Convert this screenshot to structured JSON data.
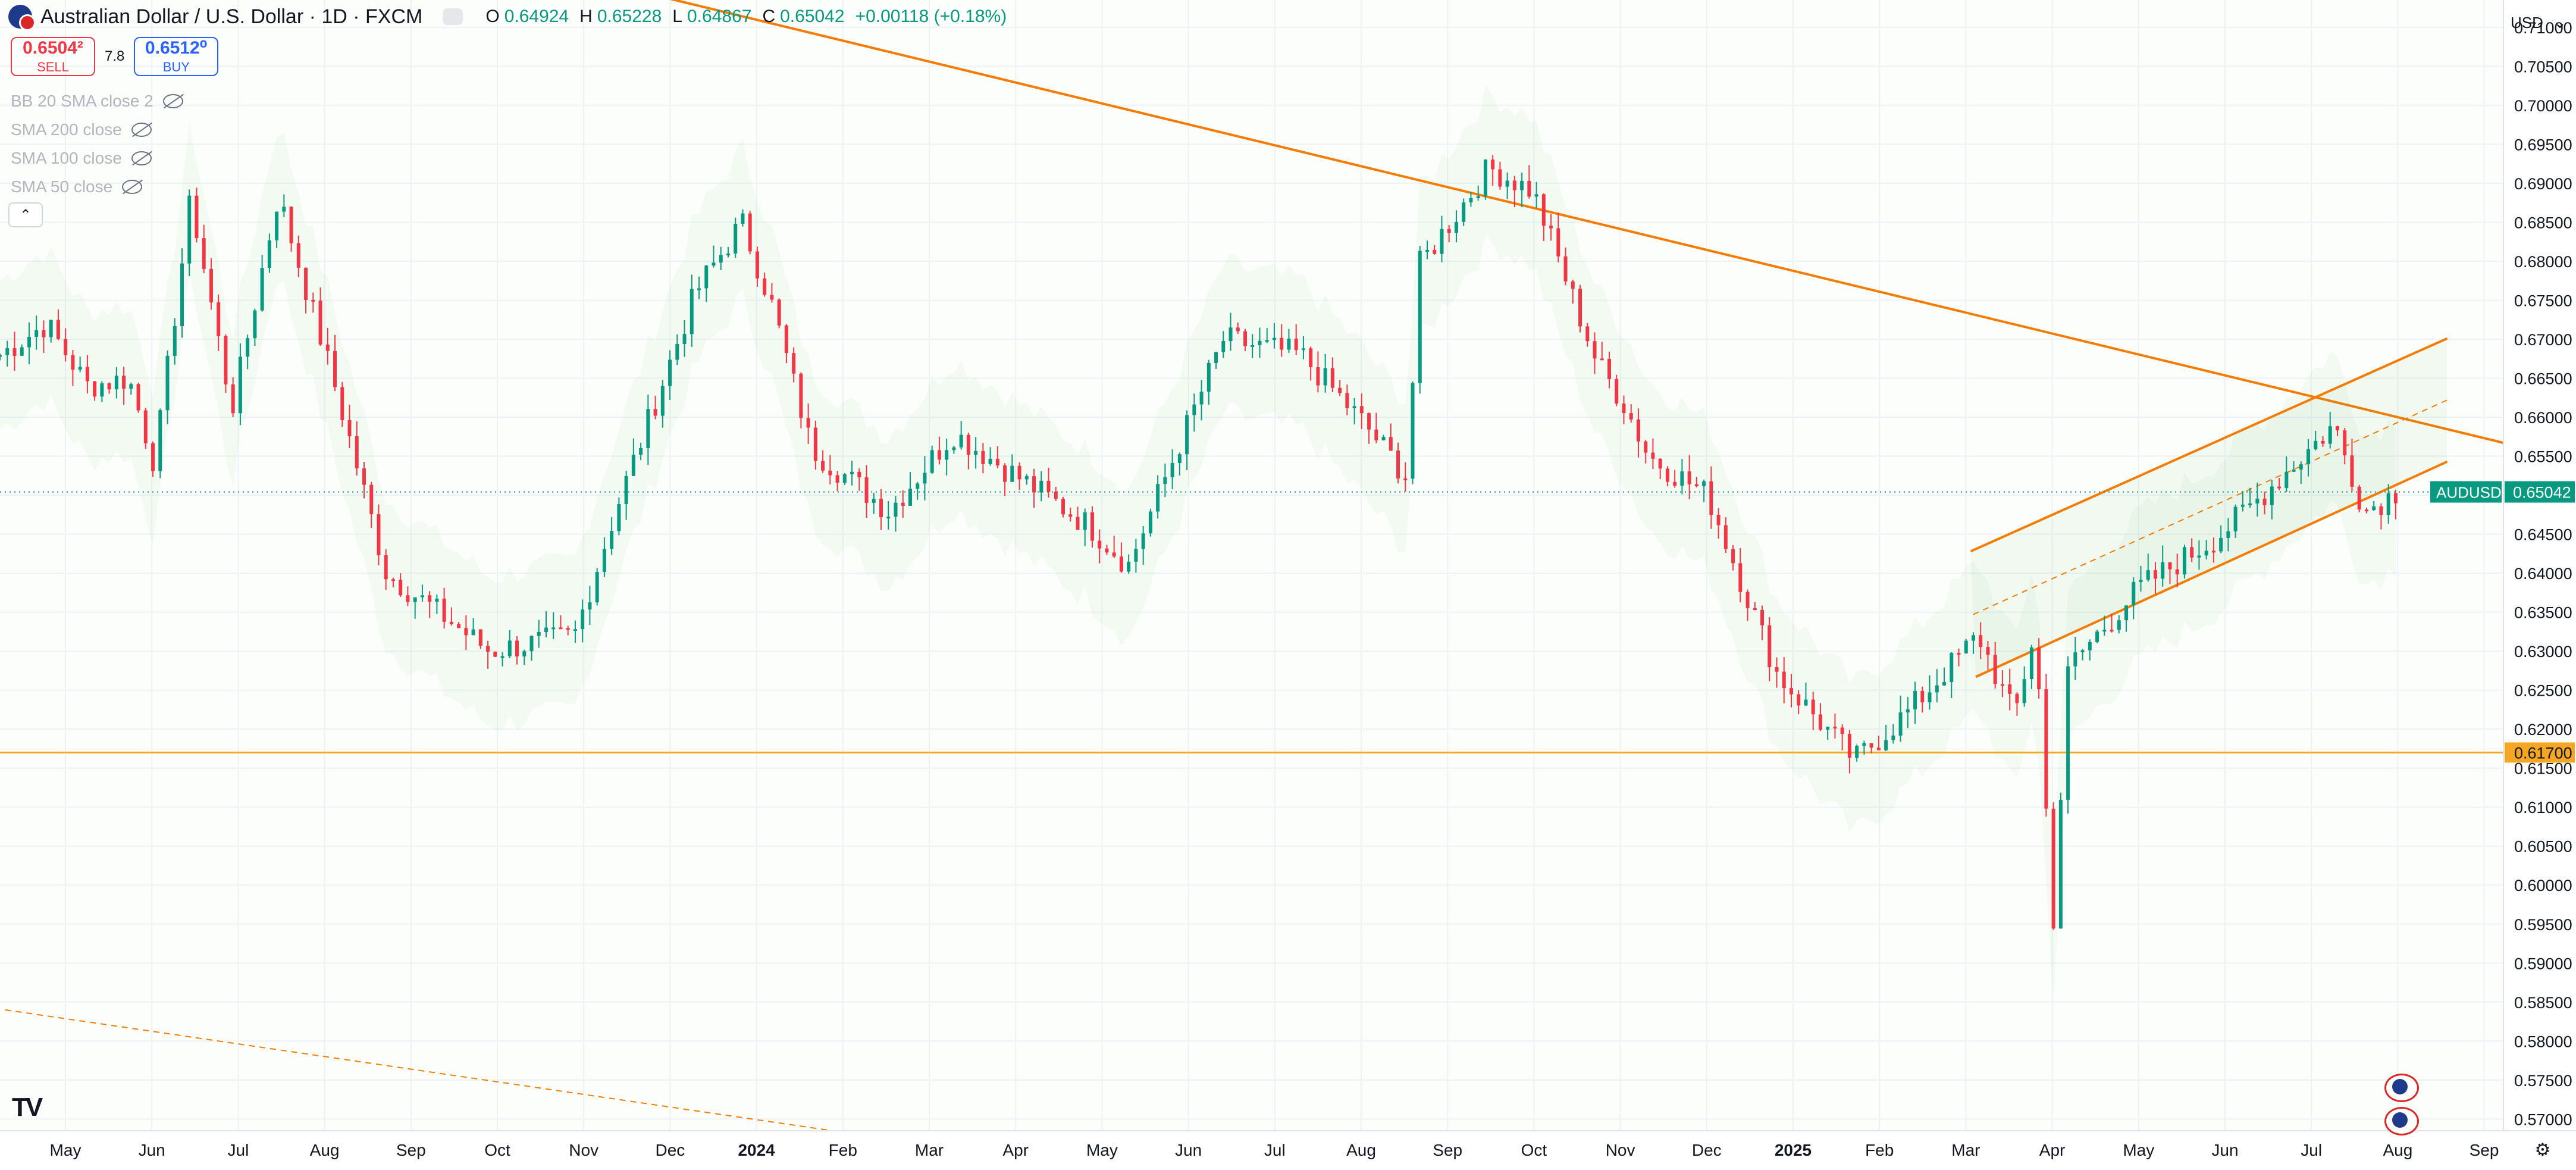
{
  "header": {
    "title": "Australian Dollar / U.S. Dollar · 1D · FXCM",
    "ohlc": [
      {
        "label": "O",
        "value": "0.64924"
      },
      {
        "label": "H",
        "value": "0.65228"
      },
      {
        "label": "L",
        "value": "0.64867"
      },
      {
        "label": "C",
        "value": "0.65042"
      }
    ],
    "change": "+0.00118 (+0.18%)"
  },
  "trade": {
    "sell_price": "0.6504²",
    "sell_label": "SELL",
    "spread": "7.8",
    "buy_price": "0.6512⁰",
    "buy_label": "BUY"
  },
  "indicators": [
    "BB 20 SMA close 2",
    "SMA 200 close",
    "SMA 100 close",
    "SMA 50 close"
  ],
  "currency": "USD",
  "icons": {
    "logo": "tradingview-logo-icon",
    "settings": "gear-icon",
    "collapse": "chevron-up-icon",
    "visibility": "eye-off-icon",
    "currency_menu": "chevron-down-icon",
    "symbol": "aud-usd-flag-icon"
  },
  "colors": {
    "up": "#089981",
    "down": "#f23645",
    "trendline": "#f57c00",
    "support": "#f5a623",
    "grid": "#f0f3fa"
  },
  "chart_data": {
    "type": "candlestick",
    "symbol": "AUDUSD",
    "timeframe": "1D",
    "ylim": [
      0.5685,
      0.7135
    ],
    "y_ticks": [
      "0.57000",
      "0.57500",
      "0.58000",
      "0.58500",
      "0.59000",
      "0.59500",
      "0.60000",
      "0.60500",
      "0.61000",
      "0.61500",
      "0.62000",
      "0.62500",
      "0.63000",
      "0.63500",
      "0.64000",
      "0.64500",
      "0.65000",
      "0.65500",
      "0.66000",
      "0.66500",
      "0.67000",
      "0.67500",
      "0.68000",
      "0.68500",
      "0.69000",
      "0.69500",
      "0.70000",
      "0.70500",
      "0.71000"
    ],
    "x_ticks": [
      {
        "label": "May",
        "bold": false
      },
      {
        "label": "Jun",
        "bold": false
      },
      {
        "label": "Jul",
        "bold": false
      },
      {
        "label": "Aug",
        "bold": false
      },
      {
        "label": "Sep",
        "bold": false
      },
      {
        "label": "Oct",
        "bold": false
      },
      {
        "label": "Nov",
        "bold": false
      },
      {
        "label": "Dec",
        "bold": false
      },
      {
        "label": "2024",
        "bold": true
      },
      {
        "label": "Feb",
        "bold": false
      },
      {
        "label": "Mar",
        "bold": false
      },
      {
        "label": "Apr",
        "bold": false
      },
      {
        "label": "May",
        "bold": false
      },
      {
        "label": "Jun",
        "bold": false
      },
      {
        "label": "Jul",
        "bold": false
      },
      {
        "label": "Aug",
        "bold": false
      },
      {
        "label": "Sep",
        "bold": false
      },
      {
        "label": "Oct",
        "bold": false
      },
      {
        "label": "Nov",
        "bold": false
      },
      {
        "label": "Dec",
        "bold": false
      },
      {
        "label": "2025",
        "bold": true
      },
      {
        "label": "Feb",
        "bold": false
      },
      {
        "label": "Mar",
        "bold": false
      },
      {
        "label": "Apr",
        "bold": false
      },
      {
        "label": "May",
        "bold": false
      },
      {
        "label": "Jun",
        "bold": false
      },
      {
        "label": "Jul",
        "bold": false
      },
      {
        "label": "Aug",
        "bold": false
      },
      {
        "label": "Sep",
        "bold": false
      }
    ],
    "price_path": [
      [
        0,
        0.668
      ],
      [
        0.018,
        0.672
      ],
      [
        0.034,
        0.664
      ],
      [
        0.05,
        0.665
      ],
      [
        0.06,
        0.654
      ],
      [
        0.074,
        0.688
      ],
      [
        0.09,
        0.661
      ],
      [
        0.108,
        0.6885
      ],
      [
        0.13,
        0.664
      ],
      [
        0.15,
        0.64
      ],
      [
        0.19,
        0.63
      ],
      [
        0.223,
        0.632
      ],
      [
        0.24,
        0.649
      ],
      [
        0.27,
        0.676
      ],
      [
        0.288,
        0.685
      ],
      [
        0.3,
        0.674
      ],
      [
        0.315,
        0.656
      ],
      [
        0.345,
        0.648
      ],
      [
        0.37,
        0.658
      ],
      [
        0.41,
        0.649
      ],
      [
        0.423,
        0.646
      ],
      [
        0.438,
        0.641
      ],
      [
        0.475,
        0.67
      ],
      [
        0.505,
        0.668
      ],
      [
        0.53,
        0.659
      ],
      [
        0.547,
        0.652
      ],
      [
        0.55,
        0.679
      ],
      [
        0.578,
        0.692
      ],
      [
        0.595,
        0.689
      ],
      [
        0.62,
        0.667
      ],
      [
        0.63,
        0.662
      ],
      [
        0.64,
        0.655
      ],
      [
        0.663,
        0.65
      ],
      [
        0.69,
        0.627
      ],
      [
        0.72,
        0.616
      ],
      [
        0.74,
        0.622
      ],
      [
        0.768,
        0.632
      ],
      [
        0.782,
        0.6215
      ],
      [
        0.79,
        0.633
      ],
      [
        0.797,
        0.595
      ],
      [
        0.803,
        0.628
      ],
      [
        0.83,
        0.638
      ],
      [
        0.862,
        0.645
      ],
      [
        0.875,
        0.649
      ],
      [
        0.906,
        0.659
      ],
      [
        0.918,
        0.648
      ],
      [
        0.93,
        0.6504
      ]
    ],
    "last_price": {
      "symbol": "AUDUSD",
      "value": "0.65042",
      "y": 0.65042
    },
    "horizontal_levels": [
      {
        "value": 0.617,
        "label": "0.61700"
      }
    ],
    "trendlines": [
      {
        "x1": 0.237,
        "y1": 0.7155,
        "x2": 0.972,
        "y2": 0.6567,
        "style": "solid"
      },
      {
        "x1": 0.002,
        "y1": 0.584,
        "x2": 0.323,
        "y2": 0.5685,
        "style": "dashed"
      }
    ],
    "channel": {
      "upper": {
        "x1": 0.765,
        "y1": 0.6428,
        "x2": 0.95,
        "y2": 0.6701
      },
      "lower": {
        "x1": 0.767,
        "y1": 0.6267,
        "x2": 0.95,
        "y2": 0.6543
      },
      "middle": {
        "x1": 0.766,
        "y1": 0.6347,
        "x2": 0.95,
        "y2": 0.6622
      }
    }
  }
}
